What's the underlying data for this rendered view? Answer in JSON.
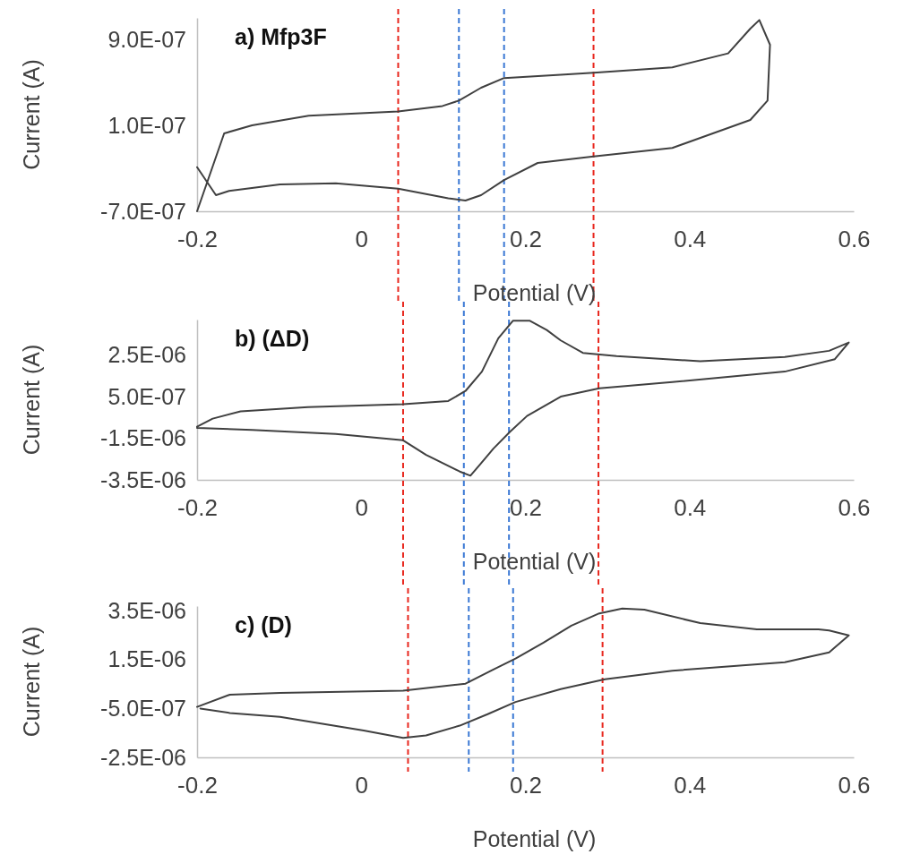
{
  "chart_data": [
    {
      "type": "line",
      "title": "a) Mfp3F",
      "xlabel": "Potential (V)",
      "ylabel": "Current (A)",
      "xlim": [
        -0.2,
        0.6
      ],
      "xticks": [
        -0.2,
        0,
        0.2,
        0.4,
        0.6
      ],
      "ylim": [
        -7e-07,
        1.1e-06
      ],
      "yticks": [
        {
          "value": -7e-07,
          "label": "-7.0E-07"
        },
        {
          "value": 1e-07,
          "label": "1.0E-07"
        },
        {
          "value": 9e-07,
          "label": "9.0E-07"
        }
      ],
      "series": [
        {
          "color": "#404040",
          "x": [
            -0.2,
            -0.167,
            -0.133,
            -0.064,
            0.045,
            0.099,
            0.119,
            0.146,
            0.174,
            0.243,
            0.283,
            0.379,
            0.447,
            0.474,
            0.485,
            0.498,
            0.495,
            0.474,
            0.379,
            0.283,
            0.215,
            0.174,
            0.146,
            0.127,
            0.106,
            0.045,
            -0.031,
            -0.099,
            -0.161,
            -0.177,
            -0.2
          ],
          "values": [
            -7e-07,
            2.5e-08,
            1e-07,
            1.9e-07,
            2.3e-07,
            2.8e-07,
            3.3e-07,
            4.5e-07,
            5.4e-07,
            5.7e-07,
            5.9e-07,
            6.4e-07,
            7.7e-07,
            1e-06,
            1.08e-06,
            8.5e-07,
            3.3e-07,
            1.5e-07,
            -1.1e-07,
            -1.9e-07,
            -2.5e-07,
            -4.1e-07,
            -5.5e-07,
            -6e-07,
            -5.8e-07,
            -4.9e-07,
            -4.4e-07,
            -4.5e-07,
            -5.1e-07,
            -5.5e-07,
            -2.9e-07
          ]
        }
      ],
      "ref_lines": [
        {
          "axis": "x",
          "value": 0.045,
          "color": "#e8271e",
          "line_style": "dashed"
        },
        {
          "axis": "x",
          "value": 0.119,
          "color": "#3a78d4",
          "line_style": "dashed"
        },
        {
          "axis": "x",
          "value": 0.174,
          "color": "#3a78d4",
          "line_style": "dashed"
        },
        {
          "axis": "x",
          "value": 0.283,
          "color": "#e8271e",
          "line_style": "dashed"
        }
      ]
    },
    {
      "type": "line",
      "title": "b) (ΔD)",
      "xlabel": "Potential (V)",
      "ylabel": "Current (A)",
      "xlim": [
        -0.2,
        0.6
      ],
      "xticks": [
        -0.2,
        0,
        0.2,
        0.4,
        0.6
      ],
      "ylim": [
        -3.5e-06,
        4.2e-06
      ],
      "yticks": [
        {
          "value": -3.5e-06,
          "label": "-3.5E-06"
        },
        {
          "value": -1.5e-06,
          "label": "-1.5E-06"
        },
        {
          "value": 5e-07,
          "label": "5.0E-07"
        },
        {
          "value": 2.5e-06,
          "label": "2.5E-06"
        }
      ],
      "series": [
        {
          "color": "#404040",
          "x": [
            -0.2,
            -0.181,
            -0.147,
            -0.065,
            0.051,
            0.106,
            0.127,
            0.147,
            0.167,
            0.185,
            0.205,
            0.226,
            0.243,
            0.27,
            0.311,
            0.413,
            0.516,
            0.57,
            0.594,
            0.577,
            0.516,
            0.379,
            0.29,
            0.243,
            0.202,
            0.181,
            0.161,
            0.144,
            0.133,
            0.12,
            0.079,
            0.051,
            -0.031,
            -0.133,
            -0.2
          ],
          "values": [
            -9.5e-07,
            -5.6e-07,
            -2.1e-07,
            0,
            1.3e-07,
            2.9e-07,
            7.7e-07,
            1.7e-06,
            3.3e-06,
            4.15e-06,
            4.15e-06,
            3.7e-06,
            3.2e-06,
            2.6e-06,
            2.45e-06,
            2.2e-06,
            2.4e-06,
            2.7e-06,
            3.1e-06,
            2.3e-06,
            1.7e-06,
            1.2e-06,
            9e-07,
            5e-07,
            -4.3e-07,
            -1.2e-06,
            -2e-06,
            -2.8e-06,
            -3.3e-06,
            -3.1e-06,
            -2.3e-06,
            -1.6e-06,
            -1.3e-06,
            -1.1e-06,
            -1e-06
          ]
        }
      ],
      "ref_lines": [
        {
          "axis": "x",
          "value": 0.051,
          "color": "#e8271e",
          "line_style": "dashed"
        },
        {
          "axis": "x",
          "value": 0.125,
          "color": "#3a78d4",
          "line_style": "dashed"
        },
        {
          "axis": "x",
          "value": 0.18,
          "color": "#3a78d4",
          "line_style": "dashed"
        },
        {
          "axis": "x",
          "value": 0.289,
          "color": "#e8271e",
          "line_style": "dashed"
        }
      ]
    },
    {
      "type": "line",
      "title": "c) (D)",
      "xlabel": "Potential (V)",
      "ylabel": "Current (A)",
      "xlim": [
        -0.2,
        0.6
      ],
      "xticks": [
        -0.2,
        0,
        0.2,
        0.4,
        0.6
      ],
      "ylim": [
        -2.5e-06,
        3.7e-06
      ],
      "yticks": [
        {
          "value": -2.5e-06,
          "label": "-2.5E-06"
        },
        {
          "value": -5e-07,
          "label": "-5.0E-07"
        },
        {
          "value": 1.5e-06,
          "label": "1.5E-06"
        },
        {
          "value": 3.5e-06,
          "label": "3.5E-06"
        }
      ],
      "series": [
        {
          "color": "#404040",
          "x": [
            -0.2,
            -0.16,
            -0.099,
            0.051,
            0.127,
            0.161,
            0.188,
            0.222,
            0.256,
            0.29,
            0.318,
            0.345,
            0.413,
            0.482,
            0.557,
            0.57,
            0.594,
            0.57,
            0.516,
            0.379,
            0.297,
            0.243,
            0.188,
            0.154,
            0.12,
            0.079,
            0.051,
            0.003,
            -0.099,
            -0.16,
            -0.196
          ],
          "values": [
            -4.3e-07,
            7e-08,
            1.4e-07,
            2.3e-07,
            5.2e-07,
            1.1e-06,
            1.55e-06,
            2.2e-06,
            2.9e-06,
            3.4e-06,
            3.6e-06,
            3.55e-06,
            3e-06,
            2.75e-06,
            2.75e-06,
            2.7e-06,
            2.5e-06,
            1.8e-06,
            1.4e-06,
            1.05e-06,
            7e-07,
            3e-07,
            -2.3e-07,
            -7.3e-07,
            -1.2e-06,
            -1.6e-06,
            -1.7e-06,
            -1.4e-06,
            -8.4e-07,
            -6.8e-07,
            -5e-07
          ]
        }
      ],
      "ref_lines": [
        {
          "axis": "x",
          "value": 0.057,
          "color": "#e8271e",
          "line_style": "dashed"
        },
        {
          "axis": "x",
          "value": 0.131,
          "color": "#3a78d4",
          "line_style": "dashed"
        },
        {
          "axis": "x",
          "value": 0.185,
          "color": "#3a78d4",
          "line_style": "dashed"
        },
        {
          "axis": "x",
          "value": 0.294,
          "color": "#e8271e",
          "line_style": "dashed"
        }
      ]
    }
  ]
}
